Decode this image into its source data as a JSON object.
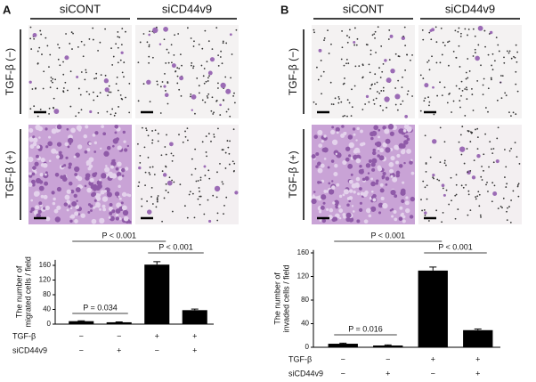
{
  "panels": [
    {
      "label": "A",
      "columns": [
        "siCONT",
        "siCD44v9"
      ],
      "rows": [
        "TGF-β (−)",
        "TGF-β (+)"
      ]
    },
    {
      "label": "B",
      "columns": [
        "siCONT",
        "siCD44v9"
      ],
      "rows": [
        "TGF-β (−)",
        "TGF-β (+)"
      ]
    }
  ],
  "chart_data": [
    {
      "type": "bar",
      "ylabel": [
        "The number of",
        "migrated cells / field"
      ],
      "factors": [
        {
          "name": "TGF-β",
          "levels": [
            "−",
            "−",
            "+",
            "+"
          ]
        },
        {
          "name": "siCD44v9",
          "levels": [
            "−",
            "+",
            "−",
            "+"
          ]
        }
      ],
      "values": [
        8,
        5,
        162,
        38
      ],
      "errors": [
        1,
        1,
        8,
        3
      ],
      "color": "#000000",
      "ylim": [
        0,
        175
      ],
      "yticks": [
        0,
        40,
        80,
        120,
        160
      ],
      "annotations": [
        {
          "text": "P = 0.034",
          "between": [
            0,
            1
          ]
        },
        {
          "text": "P < 0.001",
          "between": [
            0,
            2
          ]
        },
        {
          "text": "P < 0.001",
          "between": [
            2,
            3
          ]
        }
      ]
    },
    {
      "type": "bar",
      "ylabel": [
        "The number of",
        "invaded cells / field"
      ],
      "factors": [
        {
          "name": "TGF-β",
          "levels": [
            "−",
            "−",
            "+",
            "+"
          ]
        },
        {
          "name": "siCD44v9",
          "levels": [
            "−",
            "+",
            "−",
            "+"
          ]
        }
      ],
      "values": [
        6,
        3,
        130,
        29
      ],
      "errors": [
        1,
        1,
        6,
        2
      ],
      "color": "#000000",
      "ylim": [
        0,
        165
      ],
      "yticks": [
        0,
        40,
        80,
        120,
        160
      ],
      "annotations": [
        {
          "text": "P = 0.016",
          "between": [
            0,
            1
          ]
        },
        {
          "text": "P < 0.001",
          "between": [
            0,
            2
          ]
        },
        {
          "text": "P < 0.001",
          "between": [
            2,
            3
          ]
        }
      ]
    }
  ]
}
